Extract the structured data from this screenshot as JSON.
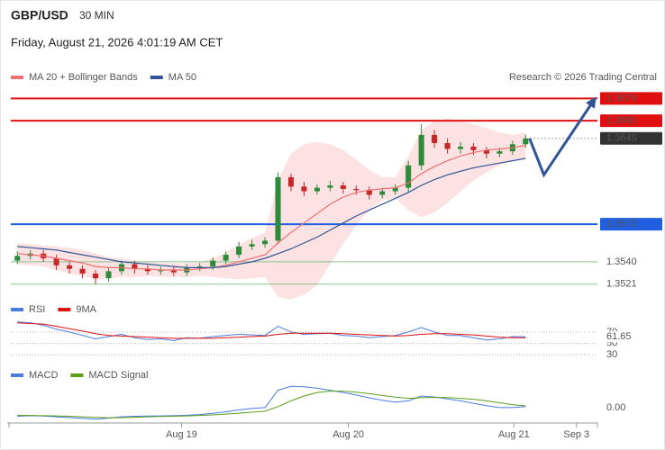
{
  "header": {
    "pair": "GBP/USD",
    "timeframe": "30 MIN",
    "datetime": "Friday, August 21, 2026 4:01:19 AM CET",
    "credit": "Research © 2026 Trading Central"
  },
  "chart_data": [
    {
      "type": "candlestick",
      "xlim": [
        -0.5,
        44.3
      ],
      "ylim": [
        1.3507,
        1.369
      ],
      "up_color": "#2e8b3a",
      "down_color": "#c62828",
      "open": [
        1.3541,
        1.3545,
        1.3547,
        1.3543,
        1.3537,
        1.3534,
        1.353,
        1.3526,
        1.3532,
        1.3538,
        1.3534,
        1.3532,
        1.3533,
        1.3531,
        1.3535,
        1.3536,
        1.3541,
        1.3546,
        1.3553,
        1.3555,
        1.3558,
        1.3612,
        1.3604,
        1.36,
        1.3603,
        1.3605,
        1.3602,
        1.3601,
        1.3597,
        1.36,
        1.3603,
        1.3622,
        1.3648,
        1.3641,
        1.3636,
        1.3638,
        1.3635,
        1.3632,
        1.3634,
        1.364
      ],
      "high": [
        1.3549,
        1.355,
        1.355,
        1.3546,
        1.354,
        1.3537,
        1.3533,
        1.3535,
        1.3541,
        1.3541,
        1.3537,
        1.3536,
        1.3536,
        1.3538,
        1.3539,
        1.3544,
        1.3549,
        1.3557,
        1.3559,
        1.3561,
        1.3616,
        1.3615,
        1.3608,
        1.3606,
        1.3609,
        1.3608,
        1.3605,
        1.3604,
        1.3603,
        1.3606,
        1.3626,
        1.3657,
        1.3652,
        1.3645,
        1.3642,
        1.3641,
        1.3638,
        1.3637,
        1.3643,
        1.3648
      ],
      "low": [
        1.3538,
        1.3542,
        1.354,
        1.3533,
        1.353,
        1.3526,
        1.3521,
        1.3523,
        1.3529,
        1.353,
        1.3529,
        1.3529,
        1.3528,
        1.3528,
        1.3532,
        1.3533,
        1.3538,
        1.3543,
        1.355,
        1.3552,
        1.3555,
        1.36,
        1.3596,
        1.3597,
        1.36,
        1.3598,
        1.3597,
        1.3593,
        1.3594,
        1.3597,
        1.3599,
        1.3618,
        1.3637,
        1.3632,
        1.3632,
        1.3631,
        1.3628,
        1.3629,
        1.3631,
        1.3637
      ],
      "close": [
        1.3545,
        1.3547,
        1.3543,
        1.3537,
        1.3534,
        1.353,
        1.3526,
        1.3532,
        1.3538,
        1.3534,
        1.3532,
        1.3533,
        1.3531,
        1.3535,
        1.3536,
        1.3541,
        1.3546,
        1.3553,
        1.3555,
        1.3558,
        1.3612,
        1.3604,
        1.36,
        1.3603,
        1.3605,
        1.3602,
        1.3601,
        1.3597,
        1.36,
        1.3603,
        1.3622,
        1.3648,
        1.3641,
        1.3636,
        1.3638,
        1.3635,
        1.3632,
        1.3634,
        1.364,
        1.3645
      ],
      "series": [
        {
          "name": "MA 20 + Bollinger Bands",
          "color": "#f07070",
          "values": [
            1.3547,
            1.3546,
            1.3545,
            1.3543,
            1.3541,
            1.3539,
            1.3536,
            1.3535,
            1.3535,
            1.3534,
            1.3534,
            1.3533,
            1.3533,
            1.3533,
            1.3534,
            1.3535,
            1.3537,
            1.354,
            1.3543,
            1.3546,
            1.3556,
            1.3565,
            1.3573,
            1.3581,
            1.3589,
            1.3595,
            1.3599,
            1.3601,
            1.3602,
            1.3603,
            1.3607,
            1.3615,
            1.3621,
            1.3626,
            1.363,
            1.3633,
            1.3635,
            1.3636,
            1.3637,
            1.3639
          ],
          "upper": [
            1.3556,
            1.3555,
            1.3554,
            1.3553,
            1.3552,
            1.355,
            1.3547,
            1.3544,
            1.3543,
            1.3541,
            1.354,
            1.3539,
            1.3539,
            1.3539,
            1.354,
            1.3543,
            1.3548,
            1.3555,
            1.356,
            1.3565,
            1.361,
            1.3632,
            1.364,
            1.3642,
            1.364,
            1.3635,
            1.3627,
            1.3618,
            1.3612,
            1.3612,
            1.363,
            1.3652,
            1.366,
            1.3662,
            1.366,
            1.3657,
            1.3654,
            1.365,
            1.3648,
            1.365
          ],
          "lower": [
            1.3538,
            1.3537,
            1.3536,
            1.3533,
            1.353,
            1.3528,
            1.3525,
            1.3526,
            1.3527,
            1.3527,
            1.3528,
            1.3527,
            1.3527,
            1.3527,
            1.3528,
            1.3527,
            1.3526,
            1.3525,
            1.3526,
            1.3527,
            1.351,
            1.3508,
            1.3512,
            1.352,
            1.3538,
            1.3555,
            1.3571,
            1.3584,
            1.3592,
            1.3594,
            1.3584,
            1.3578,
            1.3582,
            1.359,
            1.36,
            1.3609,
            1.3616,
            1.3622,
            1.3626,
            1.3628
          ]
        },
        {
          "name": "MA 50",
          "color": "#2f5597",
          "values": [
            1.3553,
            1.3552,
            1.3551,
            1.355,
            1.3548,
            1.3546,
            1.3544,
            1.3542,
            1.354,
            1.3539,
            1.3538,
            1.3537,
            1.3536,
            1.3535,
            1.3535,
            1.3535,
            1.3536,
            1.3538,
            1.354,
            1.3543,
            1.3547,
            1.3551,
            1.3556,
            1.3561,
            1.3567,
            1.3573,
            1.3579,
            1.3584,
            1.3589,
            1.3594,
            1.3599,
            1.3605,
            1.361,
            1.3614,
            1.3617,
            1.362,
            1.3622,
            1.3624,
            1.3626,
            1.3628
          ]
        }
      ],
      "levels": [
        {
          "value": 1.3679,
          "color": "#e01010",
          "box": true,
          "line": "solid"
        },
        {
          "value": 1.366,
          "label": "1.3660",
          "color": "#e01010",
          "box": true,
          "line": "solid"
        },
        {
          "value": 1.3645,
          "color": "#333333",
          "box": true,
          "line": "dotted"
        },
        {
          "value": 1.3572,
          "color": "#1f5fe0",
          "box": true,
          "line": "solid"
        },
        {
          "value": 1.354,
          "label": "1.3540",
          "color": "#8cc48c",
          "box": false,
          "line": "solid"
        },
        {
          "value": 1.3521,
          "color": "#8cc48c",
          "box": false,
          "line": "solid"
        }
      ],
      "forecast": {
        "color": "#2f5597",
        "x": [
          39.3,
          40.4,
          44.2
        ],
        "values": [
          1.3645,
          1.3614,
          1.3677
        ]
      }
    },
    {
      "type": "line",
      "xlim": [
        -0.5,
        44.3
      ],
      "ylim": [
        24,
        100
      ],
      "yticks": [
        30,
        50,
        70
      ],
      "grid": true,
      "current": 61.65,
      "series": [
        {
          "name": "RSI",
          "color": "#4a7be0",
          "values": [
            88,
            86,
            82,
            75,
            70,
            64,
            58,
            62,
            66,
            60,
            57,
            58,
            55,
            60,
            59,
            62,
            64,
            66,
            65,
            64,
            80,
            70,
            66,
            67,
            68,
            64,
            63,
            60,
            62,
            64,
            70,
            78,
            70,
            64,
            64,
            60,
            56,
            58,
            62,
            61.65
          ]
        },
        {
          "name": "9MA",
          "color": "#e01010",
          "values": [
            86,
            85,
            84,
            80,
            76,
            72,
            67,
            64,
            63,
            62,
            61,
            60,
            59,
            59,
            59,
            59,
            60,
            61,
            62,
            63,
            66,
            68,
            68,
            68,
            68,
            67,
            66,
            65,
            64,
            63,
            64,
            66,
            67,
            67,
            66,
            65,
            63,
            61,
            60,
            60
          ]
        }
      ]
    },
    {
      "type": "line",
      "xlim": [
        -0.5,
        44.3
      ],
      "ylim": [
        -0.0008,
        0.002
      ],
      "yticks": [
        {
          "value": 0,
          "label": "0.00"
        }
      ],
      "grid": false,
      "xticks": [
        {
          "value": 12.6,
          "label": "Aug 19"
        },
        {
          "value": 25.4,
          "label": "Aug 20"
        },
        {
          "value": 38.1,
          "label": "Aug 21"
        },
        {
          "value": 42.9,
          "label": "Sep 3"
        }
      ],
      "series": [
        {
          "name": "MACD",
          "color": "#4a7be0",
          "values": [
            -0.00045,
            -0.00042,
            -0.00044,
            -0.00048,
            -0.00052,
            -0.00056,
            -0.0006,
            -0.00055,
            -0.00048,
            -0.00045,
            -0.00044,
            -0.00043,
            -0.00042,
            -0.0004,
            -0.00036,
            -0.0003,
            -0.00022,
            -0.00012,
            -5e-05,
            0,
            0.0009,
            0.0011,
            0.00108,
            0.001,
            0.0009,
            0.00078,
            0.00065,
            0.0005,
            0.00038,
            0.00028,
            0.00035,
            0.0006,
            0.00055,
            0.00045,
            0.00035,
            0.00022,
            0.0001,
            0,
            0,
            5e-05
          ]
        },
        {
          "name": "MACD Signal",
          "color": "#5a9e1a",
          "values": [
            -0.0004,
            -0.00041,
            -0.00042,
            -0.00043,
            -0.00045,
            -0.00048,
            -0.00051,
            -0.00053,
            -0.00052,
            -0.0005,
            -0.00048,
            -0.00046,
            -0.00045,
            -0.00043,
            -0.00041,
            -0.00038,
            -0.00034,
            -0.00029,
            -0.00024,
            -0.00019,
            5e-05,
            0.00035,
            0.0006,
            0.00078,
            0.00085,
            0.00085,
            0.0008,
            0.00072,
            0.00063,
            0.00054,
            0.00048,
            0.00051,
            0.00053,
            0.00052,
            0.00048,
            0.00043,
            0.00035,
            0.00025,
            0.00015,
            8e-05
          ]
        }
      ]
    }
  ]
}
